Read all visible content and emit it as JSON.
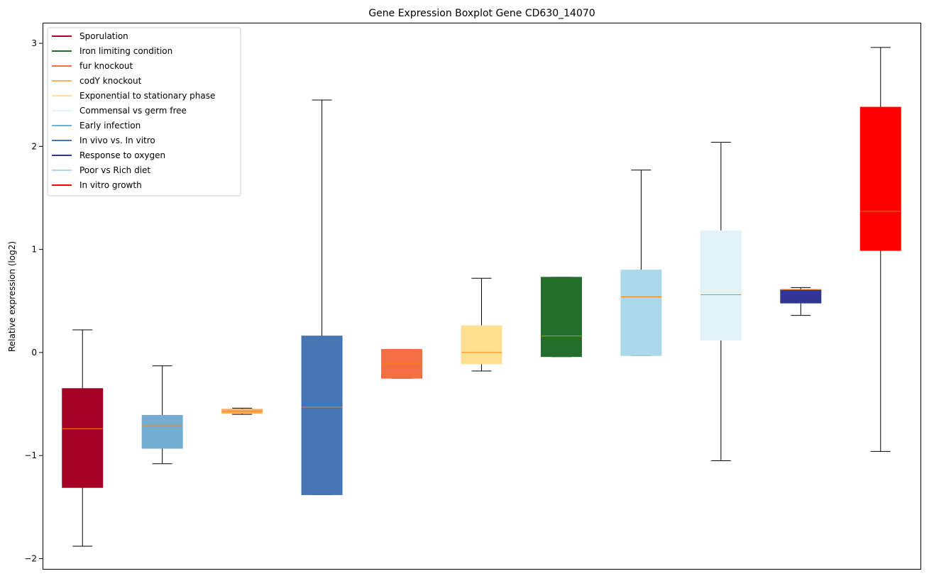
{
  "chart_data": {
    "type": "boxplot",
    "title": "Gene Expression Boxplot Gene CD630_14070",
    "xlabel": "",
    "ylabel": "Relative expression (log2)",
    "ylim": [
      -2.1,
      3.2
    ],
    "yticks": [
      -2,
      -1,
      0,
      1,
      2,
      3
    ],
    "yticklabels": [
      "−2",
      "−1",
      "0",
      "1",
      "2",
      "3"
    ],
    "median_color": "#ff7f0e",
    "legend_position": "upper-left",
    "series": [
      {
        "name": "Sporulation",
        "color": "#a50026",
        "whislo": -1.88,
        "q1": -1.31,
        "med": -0.74,
        "q3": -0.35,
        "whishi": 0.22
      },
      {
        "name": "Early infection",
        "color": "#74add1",
        "whislo": -1.08,
        "q1": -0.93,
        "med": -0.71,
        "q3": -0.61,
        "whislo_note": "",
        "whishi": -0.13
      },
      {
        "name": "codY knockout",
        "color": "#fdae61",
        "whislo": -0.6,
        "q1": -0.59,
        "med": -0.57,
        "q3": -0.55,
        "whishi": -0.54
      },
      {
        "name": "In vivo vs. In vitro",
        "color": "#4575b4",
        "whislo": -1.38,
        "q1": -1.38,
        "med": -0.53,
        "q3": 0.16,
        "whishi": 2.45
      },
      {
        "name": "fur knockout",
        "color": "#f46d43",
        "whislo": -0.25,
        "q1": -0.25,
        "med": -0.11,
        "q3": 0.03,
        "whishi": 0.03
      },
      {
        "name": "Exponential to stationary phase",
        "color": "#fee090",
        "whislo": -0.18,
        "q1": -0.11,
        "med": 0.0,
        "q3": 0.26,
        "whishi": 0.72
      },
      {
        "name": "Iron limiting condition",
        "color": "#236e2c",
        "whislo": -0.04,
        "q1": -0.04,
        "med": 0.16,
        "q3": 0.73,
        "whishi": 0.73
      },
      {
        "name": "Poor vs Rich diet",
        "color": "#abd9e9",
        "whislo": -0.03,
        "q1": -0.03,
        "med": 0.54,
        "q3": 0.8,
        "whishi": 1.77
      },
      {
        "name": "Commensal vs germ free",
        "color": "#e0f3f8",
        "whislo": -1.05,
        "q1": 0.12,
        "med": 0.56,
        "q3": 1.18,
        "whishi": 2.04
      },
      {
        "name": "Response to oxygen",
        "color": "#313695",
        "whislo": 0.36,
        "q1": 0.48,
        "med": 0.61,
        "q3": 0.61,
        "whishi": 0.63
      },
      {
        "name": "In vitro growth",
        "color": "#ff0000",
        "whislo": -0.96,
        "q1": 0.99,
        "med": 1.37,
        "q3": 2.38,
        "whishi": 2.96
      }
    ],
    "legend": [
      {
        "label": "Sporulation",
        "color": "#a50026"
      },
      {
        "label": "Iron limiting condition",
        "color": "#236e2c"
      },
      {
        "label": "fur knockout",
        "color": "#f46d43"
      },
      {
        "label": "codY knockout",
        "color": "#fdae61"
      },
      {
        "label": "Exponential to stationary phase",
        "color": "#fee090"
      },
      {
        "label": "Commensal vs germ free",
        "color": "#e0f3f8"
      },
      {
        "label": "Early infection",
        "color": "#74add1"
      },
      {
        "label": "In vivo vs. In vitro",
        "color": "#4575b4"
      },
      {
        "label": "Response to oxygen",
        "color": "#313695"
      },
      {
        "label": "Poor vs Rich diet",
        "color": "#abd9e9"
      },
      {
        "label": "In vitro growth",
        "color": "#ff0000"
      }
    ]
  }
}
